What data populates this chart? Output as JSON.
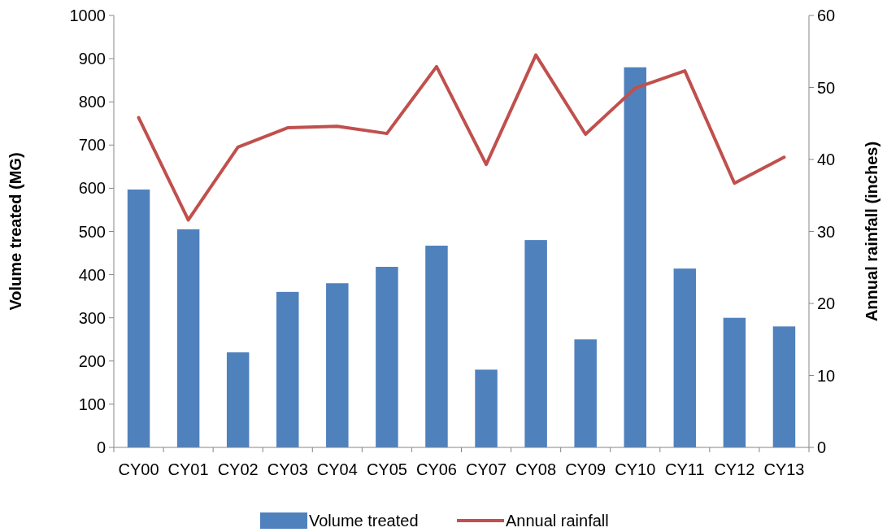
{
  "chart_data": {
    "type": "bar",
    "categories": [
      "CY00",
      "CY01",
      "CY02",
      "CY03",
      "CY04",
      "CY05",
      "CY06",
      "CY07",
      "CY08",
      "CY09",
      "CY10",
      "CY11",
      "CY12",
      "CY13"
    ],
    "series": [
      {
        "name": "Volume treated",
        "color": "#4f81bd",
        "values": [
          597,
          505,
          220,
          360,
          380,
          418,
          467,
          180,
          480,
          250,
          880,
          414,
          300,
          280
        ]
      },
      {
        "name": "Annual rainfall",
        "type": "line",
        "axis": "y2",
        "color": "#c0504d",
        "values": [
          45.8,
          31.6,
          41.7,
          44.4,
          44.6,
          43.6,
          52.9,
          39.3,
          54.5,
          43.5,
          49.9,
          52.3,
          36.7,
          40.3
        ]
      }
    ],
    "ylabel": "Volume treated (MG)",
    "y2label": "Annual rainfall (inches)",
    "ylim": [
      0,
      1000
    ],
    "yticks": [
      0,
      100,
      200,
      300,
      400,
      500,
      600,
      700,
      800,
      900,
      1000
    ],
    "y2lim": [
      0,
      60
    ],
    "y2ticks": [
      0,
      10,
      20,
      30,
      40,
      50,
      60
    ],
    "grid": false,
    "legend": "bottom",
    "marker": "none"
  }
}
